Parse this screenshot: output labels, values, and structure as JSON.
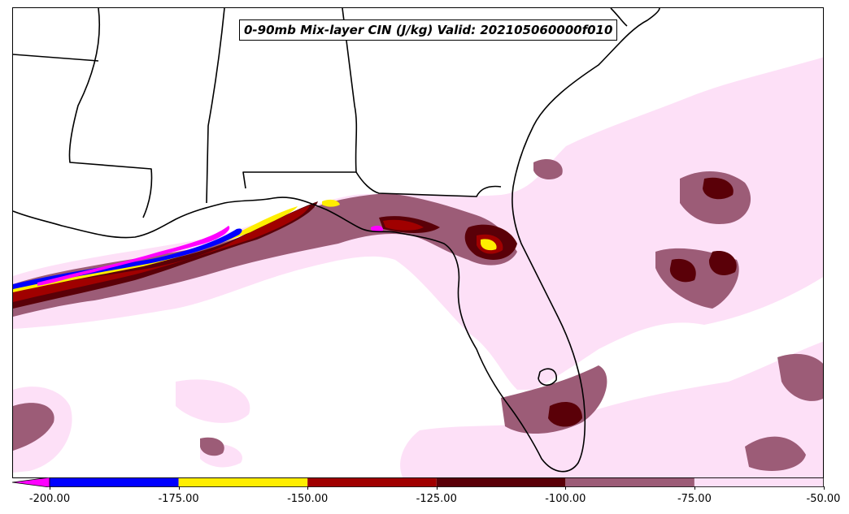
{
  "title": "0-90mb Mix-layer CIN (J/kg) Valid: 202105060000f010",
  "colorbar": {
    "extend": "min",
    "under_color": "#ff00ff",
    "ticks": [
      "-200.00",
      "-175.00",
      "-150.00",
      "-125.00",
      "-100.00",
      "-75.00",
      "-50.00"
    ],
    "bins": [
      {
        "from": -200,
        "to": -175,
        "color": "#0000ff"
      },
      {
        "from": -175,
        "to": -150,
        "color": "#ffee00"
      },
      {
        "from": -150,
        "to": -125,
        "color": "#a00000"
      },
      {
        "from": -125,
        "to": -100,
        "color": "#5a0008"
      },
      {
        "from": -100,
        "to": -75,
        "color": "#9c5c77"
      },
      {
        "from": -75,
        "to": -50,
        "color": "#fde0f7"
      }
    ]
  }
}
